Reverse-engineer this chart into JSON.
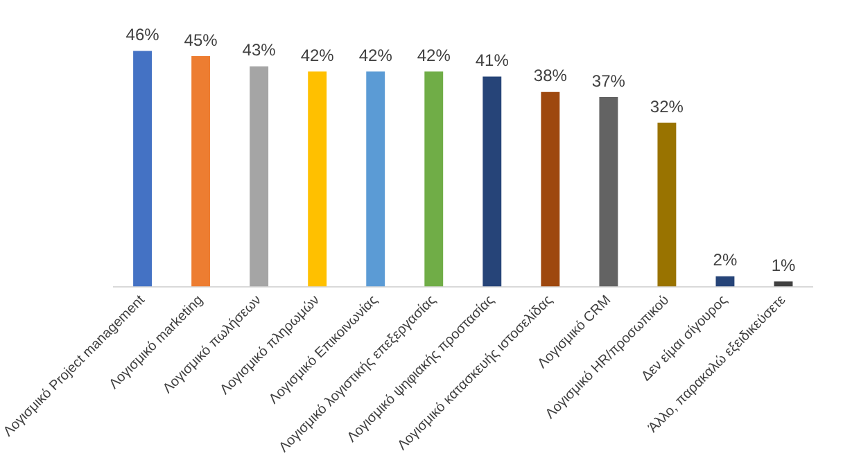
{
  "chart_data": {
    "type": "bar",
    "categories": [
      "Λογισμικό Project management",
      "Λογισμικό marketing",
      "Λογισμικό πωλήσεων",
      "Λογισμικό πληρωμών",
      "Λογισμικό Επικοινωνίας",
      "Λογισμικό λογιστικής επεξεργασίας",
      "Λογισμικό ψηφιακής προστασίας",
      "Λογισμικό κατασκευής ιστοσελίδας",
      "Λογισμικό CRM",
      "Λογισμικό HR/προσωπικού",
      "Δεν είμαι σίγουρος",
      "Άλλο, παρακαλώ εξειδικεύσετε"
    ],
    "values": [
      46,
      45,
      43,
      42,
      42,
      42,
      41,
      38,
      37,
      32,
      2,
      1
    ],
    "value_labels": [
      "46%",
      "45%",
      "43%",
      "42%",
      "42%",
      "42%",
      "41%",
      "38%",
      "37%",
      "32%",
      "2%",
      "1%"
    ],
    "colors": [
      "#4472c4",
      "#ed7d31",
      "#a5a5a5",
      "#ffc000",
      "#5b9bd5",
      "#70ad47",
      "#264478",
      "#9e480e",
      "#636363",
      "#997300",
      "#264478",
      "#404040"
    ],
    "tick_labels": "x",
    "grid": false,
    "legend": false
  }
}
